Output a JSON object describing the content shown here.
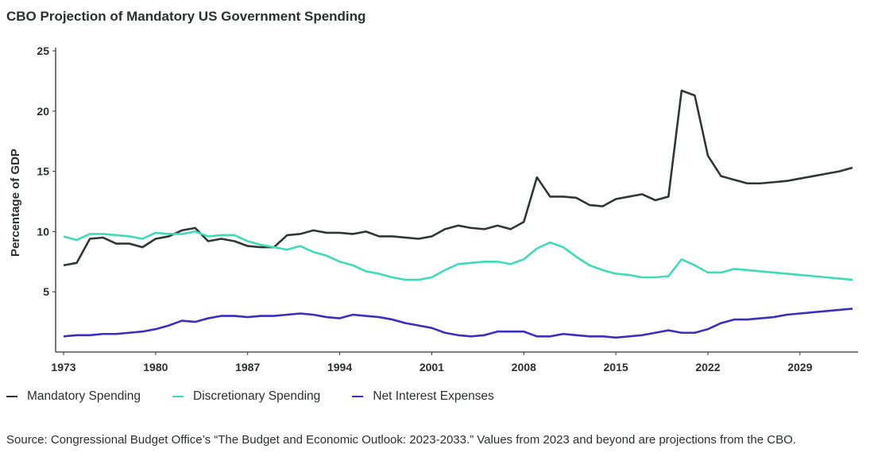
{
  "chart_data": {
    "type": "line",
    "title": "CBO Projection of Mandatory US Government Spending",
    "xlabel": "",
    "ylabel": "Percentage of GDP",
    "xlim": [
      1973,
      2033
    ],
    "ylim": [
      0,
      25
    ],
    "x_ticks": [
      "1973",
      "1980",
      "1987",
      "1994",
      "2001",
      "2008",
      "2015",
      "2022",
      "2029"
    ],
    "y_ticks": [
      "5",
      "10",
      "15",
      "20",
      "25"
    ],
    "grid": false,
    "legend_position": "bottom",
    "x_start": 1973,
    "series": [
      {
        "name": "Mandatory Spending",
        "color": "#2e3833",
        "values": [
          7.2,
          7.4,
          9.4,
          9.5,
          9.0,
          9.0,
          8.7,
          9.4,
          9.6,
          10.1,
          10.3,
          9.2,
          9.4,
          9.2,
          8.8,
          8.7,
          8.7,
          9.7,
          9.8,
          10.1,
          9.9,
          9.9,
          9.8,
          10.0,
          9.6,
          9.6,
          9.5,
          9.4,
          9.6,
          10.2,
          10.5,
          10.3,
          10.2,
          10.5,
          10.2,
          10.8,
          14.5,
          12.9,
          12.9,
          12.8,
          12.2,
          12.1,
          12.7,
          12.9,
          13.1,
          12.6,
          12.9,
          21.7,
          21.3,
          16.3,
          14.6,
          14.3,
          14.0,
          14.0,
          14.1,
          14.2,
          14.4,
          14.6,
          14.8,
          15.0,
          15.3
        ]
      },
      {
        "name": "Discretionary Spending",
        "color": "#3ddbb7",
        "values": [
          9.6,
          9.3,
          9.8,
          9.8,
          9.7,
          9.6,
          9.4,
          9.9,
          9.8,
          9.8,
          10.0,
          9.6,
          9.7,
          9.7,
          9.2,
          8.9,
          8.7,
          8.5,
          8.8,
          8.3,
          8.0,
          7.5,
          7.2,
          6.7,
          6.5,
          6.2,
          6.0,
          6.0,
          6.2,
          6.8,
          7.3,
          7.4,
          7.5,
          7.5,
          7.3,
          7.7,
          8.6,
          9.1,
          8.7,
          7.9,
          7.2,
          6.8,
          6.5,
          6.4,
          6.2,
          6.2,
          6.3,
          7.7,
          7.2,
          6.6,
          6.6,
          6.9,
          6.8,
          6.7,
          6.6,
          6.5,
          6.4,
          6.3,
          6.2,
          6.1,
          6.0
        ]
      },
      {
        "name": "Net Interest Expenses",
        "color": "#3a2fc0",
        "values": [
          1.3,
          1.4,
          1.4,
          1.5,
          1.5,
          1.6,
          1.7,
          1.9,
          2.2,
          2.6,
          2.5,
          2.8,
          3.0,
          3.0,
          2.9,
          3.0,
          3.0,
          3.1,
          3.2,
          3.1,
          2.9,
          2.8,
          3.1,
          3.0,
          2.9,
          2.7,
          2.4,
          2.2,
          2.0,
          1.6,
          1.4,
          1.3,
          1.4,
          1.7,
          1.7,
          1.7,
          1.3,
          1.3,
          1.5,
          1.4,
          1.3,
          1.3,
          1.2,
          1.3,
          1.4,
          1.6,
          1.8,
          1.6,
          1.6,
          1.9,
          2.4,
          2.7,
          2.7,
          2.8,
          2.9,
          3.1,
          3.2,
          3.3,
          3.4,
          3.5,
          3.6
        ]
      }
    ]
  },
  "source": "Source: Congressional Budget Office’s “The Budget and Economic Outlook: 2023-2033.” Values from 2023 and beyond are projections from the CBO."
}
